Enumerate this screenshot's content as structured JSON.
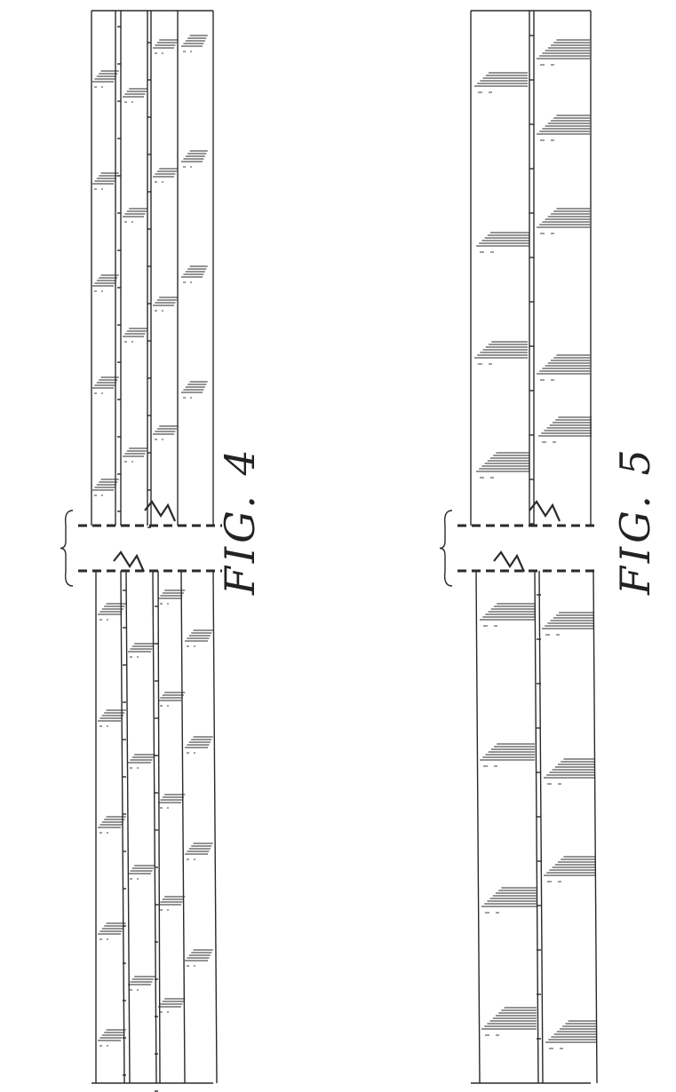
{
  "figures": [
    {
      "label": "FIG. 4"
    },
    {
      "label": "FIG. 5"
    }
  ],
  "colors": {
    "line": "#2a2a2a",
    "paper": "#ffffff"
  }
}
